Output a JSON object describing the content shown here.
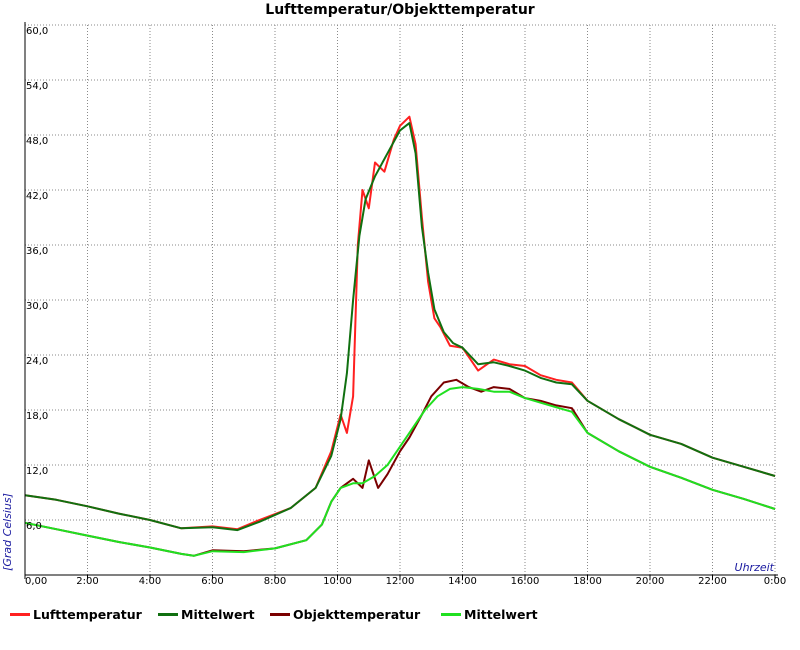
{
  "chart_data": {
    "type": "line",
    "title": "Lufttemperatur/Objekttemperatur",
    "xlabel": "Uhrzeit",
    "ylabel": "[Grad Celsius]",
    "xlim": [
      0,
      24
    ],
    "ylim": [
      0,
      60
    ],
    "x_unit": "hours",
    "x_ticks": [
      "0,00",
      "2:00",
      "4:00",
      "6:00",
      "8:00",
      "10:00",
      "12:00",
      "14:00",
      "16:00",
      "18:00",
      "20:00",
      "22:00",
      "0:00"
    ],
    "y_ticks": [
      "6,0",
      "12,0",
      "18,0",
      "24,0",
      "30,0",
      "36,0",
      "42,0",
      "48,0",
      "54,0",
      "60,0"
    ],
    "grid": true,
    "legend_position": "bottom",
    "series": [
      {
        "name": "Lufttemperatur",
        "color": "#ff2020",
        "points": [
          [
            0,
            8.7
          ],
          [
            1,
            8.2
          ],
          [
            2,
            7.5
          ],
          [
            3,
            6.7
          ],
          [
            4,
            6.0
          ],
          [
            5,
            5.1
          ],
          [
            6,
            5.3
          ],
          [
            6.8,
            5.0
          ],
          [
            7.5,
            6.0
          ],
          [
            8.5,
            7.3
          ],
          [
            9.3,
            9.5
          ],
          [
            9.8,
            13.5
          ],
          [
            10.1,
            17.5
          ],
          [
            10.3,
            15.5
          ],
          [
            10.5,
            19.5
          ],
          [
            10.65,
            36.0
          ],
          [
            10.8,
            42.0
          ],
          [
            11.0,
            40.0
          ],
          [
            11.2,
            45.0
          ],
          [
            11.5,
            44.0
          ],
          [
            11.8,
            47.5
          ],
          [
            12.0,
            49.0
          ],
          [
            12.3,
            50.0
          ],
          [
            12.5,
            47.0
          ],
          [
            12.7,
            39.0
          ],
          [
            12.9,
            32.0
          ],
          [
            13.1,
            28.0
          ],
          [
            13.3,
            27.0
          ],
          [
            13.6,
            25.0
          ],
          [
            14.0,
            24.8
          ],
          [
            14.5,
            22.3
          ],
          [
            15.0,
            23.5
          ],
          [
            15.5,
            23.0
          ],
          [
            16.0,
            22.8
          ],
          [
            16.5,
            21.8
          ],
          [
            17.0,
            21.3
          ],
          [
            17.5,
            21.0
          ],
          [
            18.0,
            19.0
          ],
          [
            19.0,
            17.0
          ],
          [
            20.0,
            15.3
          ],
          [
            21.0,
            14.3
          ],
          [
            22.0,
            12.8
          ],
          [
            23.0,
            11.8
          ],
          [
            24.0,
            10.8
          ]
        ]
      },
      {
        "name": "Mittelwert",
        "color": "#107010",
        "points": [
          [
            0,
            8.7
          ],
          [
            1,
            8.2
          ],
          [
            2,
            7.5
          ],
          [
            3,
            6.7
          ],
          [
            4,
            6.0
          ],
          [
            5,
            5.1
          ],
          [
            6,
            5.2
          ],
          [
            6.8,
            4.9
          ],
          [
            7.5,
            5.8
          ],
          [
            8.5,
            7.3
          ],
          [
            9.3,
            9.5
          ],
          [
            9.8,
            13.0
          ],
          [
            10.1,
            17.0
          ],
          [
            10.3,
            22.0
          ],
          [
            10.5,
            30.0
          ],
          [
            10.7,
            37.0
          ],
          [
            10.9,
            41.0
          ],
          [
            11.2,
            43.5
          ],
          [
            11.6,
            46.0
          ],
          [
            12.0,
            48.5
          ],
          [
            12.3,
            49.3
          ],
          [
            12.5,
            46.0
          ],
          [
            12.7,
            38.0
          ],
          [
            12.9,
            33.0
          ],
          [
            13.1,
            29.0
          ],
          [
            13.4,
            26.5
          ],
          [
            13.7,
            25.3
          ],
          [
            14.0,
            24.8
          ],
          [
            14.5,
            23.0
          ],
          [
            15.0,
            23.2
          ],
          [
            15.5,
            22.8
          ],
          [
            16.0,
            22.3
          ],
          [
            16.5,
            21.5
          ],
          [
            17.0,
            21.0
          ],
          [
            17.5,
            20.8
          ],
          [
            18.0,
            19.0
          ],
          [
            19.0,
            17.0
          ],
          [
            20.0,
            15.3
          ],
          [
            21.0,
            14.3
          ],
          [
            22.0,
            12.8
          ],
          [
            23.0,
            11.8
          ],
          [
            24.0,
            10.8
          ]
        ]
      },
      {
        "name": "Objekttemperatur",
        "color": "#7a0000",
        "points": [
          [
            0,
            5.7
          ],
          [
            1,
            5.0
          ],
          [
            2,
            4.3
          ],
          [
            3,
            3.6
          ],
          [
            4,
            3.0
          ],
          [
            5,
            2.3
          ],
          [
            5.4,
            2.1
          ],
          [
            6,
            2.7
          ],
          [
            7,
            2.6
          ],
          [
            8,
            2.9
          ],
          [
            9,
            3.8
          ],
          [
            9.5,
            5.5
          ],
          [
            9.8,
            8.0
          ],
          [
            10.1,
            9.5
          ],
          [
            10.5,
            10.5
          ],
          [
            10.8,
            9.5
          ],
          [
            11.0,
            12.5
          ],
          [
            11.3,
            9.5
          ],
          [
            11.6,
            11.0
          ],
          [
            12.0,
            13.5
          ],
          [
            12.3,
            15.0
          ],
          [
            12.7,
            17.5
          ],
          [
            13.0,
            19.5
          ],
          [
            13.4,
            21.0
          ],
          [
            13.8,
            21.3
          ],
          [
            14.2,
            20.5
          ],
          [
            14.6,
            20.0
          ],
          [
            15.0,
            20.5
          ],
          [
            15.5,
            20.3
          ],
          [
            16.0,
            19.3
          ],
          [
            16.5,
            19.0
          ],
          [
            17.0,
            18.5
          ],
          [
            17.5,
            18.2
          ],
          [
            18.0,
            15.5
          ],
          [
            19.0,
            13.5
          ],
          [
            20.0,
            11.8
          ],
          [
            21.0,
            10.6
          ],
          [
            22.0,
            9.3
          ],
          [
            23.0,
            8.3
          ],
          [
            24.0,
            7.2
          ]
        ]
      },
      {
        "name": "Mittelwert",
        "color": "#20e020",
        "points": [
          [
            0,
            5.7
          ],
          [
            1,
            5.0
          ],
          [
            2,
            4.3
          ],
          [
            3,
            3.6
          ],
          [
            4,
            3.0
          ],
          [
            5,
            2.3
          ],
          [
            5.4,
            2.1
          ],
          [
            6,
            2.6
          ],
          [
            7,
            2.5
          ],
          [
            8,
            2.9
          ],
          [
            9,
            3.8
          ],
          [
            9.5,
            5.5
          ],
          [
            9.8,
            8.0
          ],
          [
            10.1,
            9.5
          ],
          [
            10.5,
            10.0
          ],
          [
            10.8,
            10.0
          ],
          [
            11.2,
            10.8
          ],
          [
            11.6,
            12.0
          ],
          [
            12.0,
            14.0
          ],
          [
            12.4,
            16.0
          ],
          [
            12.8,
            18.0
          ],
          [
            13.2,
            19.5
          ],
          [
            13.6,
            20.3
          ],
          [
            14.0,
            20.5
          ],
          [
            14.5,
            20.3
          ],
          [
            15.0,
            20.0
          ],
          [
            15.5,
            20.0
          ],
          [
            16.0,
            19.3
          ],
          [
            16.5,
            18.8
          ],
          [
            17.0,
            18.3
          ],
          [
            17.5,
            17.8
          ],
          [
            18.0,
            15.5
          ],
          [
            19.0,
            13.5
          ],
          [
            20.0,
            11.8
          ],
          [
            21.0,
            10.6
          ],
          [
            22.0,
            9.3
          ],
          [
            23.0,
            8.3
          ],
          [
            24.0,
            7.2
          ]
        ]
      }
    ]
  }
}
